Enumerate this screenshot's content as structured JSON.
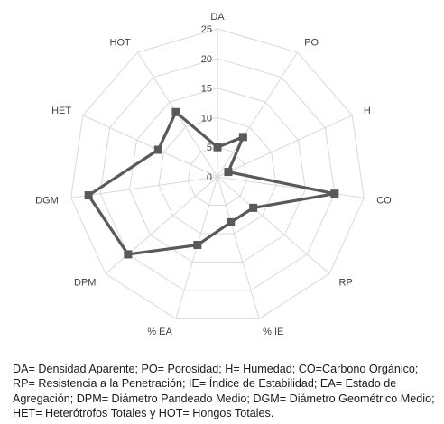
{
  "chart_data": {
    "type": "radar",
    "categories": [
      "DA",
      "PO",
      "H",
      "CO",
      "RP",
      "% IE",
      "% EA",
      "DPM",
      "DGM",
      "HET",
      "HOT"
    ],
    "series": [
      {
        "values": [
          5,
          8,
          2,
          20,
          8,
          8,
          12,
          20,
          22,
          11,
          13
        ],
        "color": "#595959"
      }
    ],
    "rticks": [
      0,
      5,
      10,
      15,
      20,
      25
    ],
    "rlim": [
      0,
      25
    ],
    "grid": true,
    "grid_color": "#d9d9d9"
  },
  "caption": "DA= Densidad Aparente; PO= Porosidad; H= Humedad; CO=Carbono Orgánico; RP= Resistencia a la Penetración; IE= Índice de Estabilidad; EA= Estado de Agregación; DPM= Diámetro Pandeado Medio; DGM= Diámetro Geométrico Medio; HET= Heterótrofos Totales y HOT= Hongos Totales."
}
